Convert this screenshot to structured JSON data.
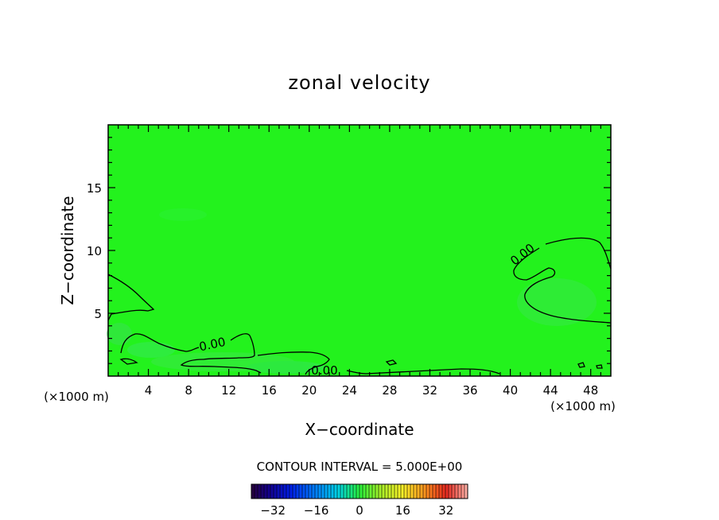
{
  "chart_data": {
    "type": "heatmap",
    "title": "zonal velocity",
    "xlabel": "X−coordinate",
    "ylabel": "Z−coordinate",
    "x_unit_left": "(×1000 m)",
    "x_unit_right": "(×1000 m)",
    "xlim": [
      0,
      50
    ],
    "ylim": [
      0,
      20
    ],
    "x_ticks": [
      4,
      8,
      12,
      16,
      20,
      24,
      28,
      32,
      36,
      40,
      44,
      48
    ],
    "y_ticks": [
      5,
      10,
      15
    ],
    "grid": false,
    "contour_interval_label": "CONTOUR INTERVAL = 5.000E+00",
    "contour_labels": [
      "0.00",
      "0.00",
      "0.00"
    ],
    "colorbar": {
      "min": -40,
      "max": 40,
      "ticks": [
        -32,
        -16,
        0,
        16,
        32
      ],
      "tick_labels": [
        "−32",
        "−16",
        "0",
        "16",
        "32"
      ]
    },
    "field_color": "#23f21d"
  }
}
